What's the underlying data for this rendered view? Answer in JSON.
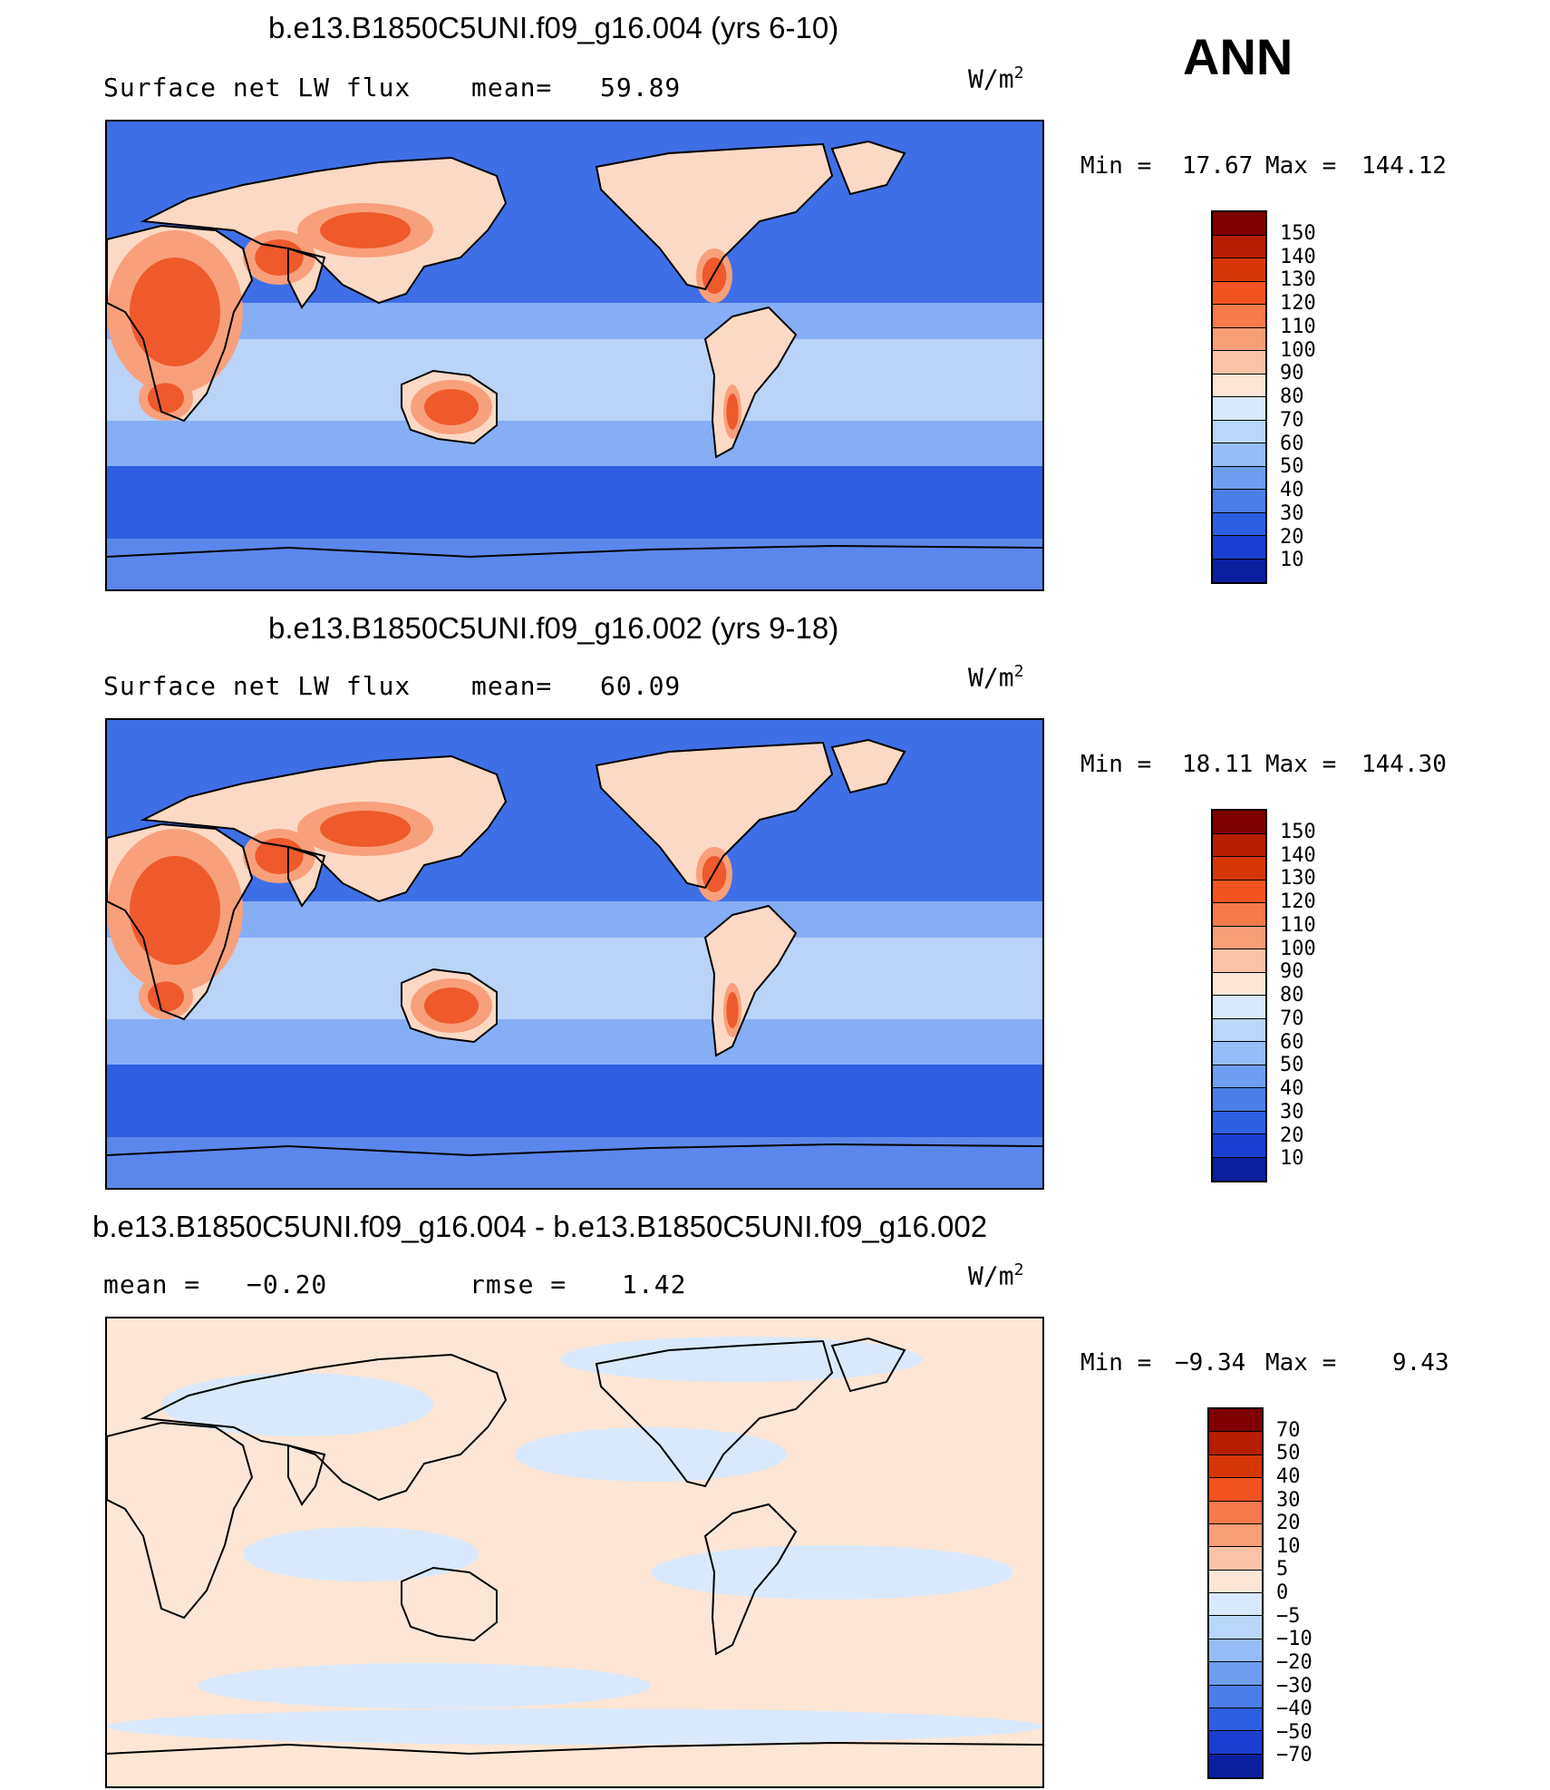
{
  "season": "ANN",
  "panels": [
    {
      "title": "b.e13.B1850C5UNI.f09_g16.004 (yrs 6-10)",
      "left_label": "Surface net LW flux",
      "mid_label": "mean=",
      "mid_value": "59.89",
      "units": "W/m",
      "units_sup": "2",
      "min_label": "Min =",
      "min_value": "17.67",
      "max_label": "Max =",
      "max_value": "144.12",
      "colorbar": {
        "labels": [
          "150",
          "140",
          "130",
          "120",
          "110",
          "100",
          "90",
          "80",
          "70",
          "60",
          "50",
          "40",
          "30",
          "20",
          "10"
        ],
        "colors": [
          "#7f0000",
          "#b51e02",
          "#d53707",
          "#f2541f",
          "#f67a4b",
          "#f89e77",
          "#fbc3a6",
          "#fde6d6",
          "#d9e9fb",
          "#b9d6fb",
          "#95bdf7",
          "#6f9ef1",
          "#4c7ee9",
          "#2c5fe2",
          "#1a3fd0",
          "#0a209e"
        ]
      },
      "map_kind": "field"
    },
    {
      "title": "b.e13.B1850C5UNI.f09_g16.002 (yrs 9-18)",
      "left_label": "Surface net LW flux",
      "mid_label": "mean=",
      "mid_value": "60.09",
      "units": "W/m",
      "units_sup": "2",
      "min_label": "Min =",
      "min_value": "18.11",
      "max_label": "Max =",
      "max_value": "144.30",
      "colorbar": {
        "labels": [
          "150",
          "140",
          "130",
          "120",
          "110",
          "100",
          "90",
          "80",
          "70",
          "60",
          "50",
          "40",
          "30",
          "20",
          "10"
        ],
        "colors": [
          "#7f0000",
          "#b51e02",
          "#d53707",
          "#f2541f",
          "#f67a4b",
          "#f89e77",
          "#fbc3a6",
          "#fde6d6",
          "#d9e9fb",
          "#b9d6fb",
          "#95bdf7",
          "#6f9ef1",
          "#4c7ee9",
          "#2c5fe2",
          "#1a3fd0",
          "#0a209e"
        ]
      },
      "map_kind": "field"
    },
    {
      "title": "b.e13.B1850C5UNI.f09_g16.004 - b.e13.B1850C5UNI.f09_g16.002",
      "left_label": "mean =",
      "left_value": "−0.20",
      "mid_label": "rmse =",
      "mid_value": "1.42",
      "units": "W/m",
      "units_sup": "2",
      "min_label": "Min =",
      "min_value": "−9.34",
      "max_label": "Max =",
      "max_value": "9.43",
      "colorbar": {
        "labels": [
          "70",
          "50",
          "40",
          "30",
          "20",
          "10",
          "5",
          "0",
          "−5",
          "−10",
          "−20",
          "−30",
          "−40",
          "−50",
          "−70"
        ],
        "colors": [
          "#7f0000",
          "#b51e02",
          "#d53707",
          "#f2541f",
          "#f67a4b",
          "#f89e77",
          "#fbc3a6",
          "#fde6d6",
          "#d9e9fb",
          "#b9d6fb",
          "#95bdf7",
          "#6f9ef1",
          "#4c7ee9",
          "#2c5fe2",
          "#1a3fd0",
          "#0a209e"
        ]
      },
      "map_kind": "diff"
    }
  ],
  "colors": {
    "ocean_field": "#3f6fe6",
    "ocean_mid": "#86aef5",
    "ocean_light": "#cfe2fb",
    "desert_hot": "#ee5a2c",
    "desert_warm": "#f8a07c",
    "desert_pale": "#fcd9c4",
    "antarctic": "#5b87ec",
    "diff_pos": "#fde6d6",
    "diff_neg": "#d9e9fb"
  }
}
